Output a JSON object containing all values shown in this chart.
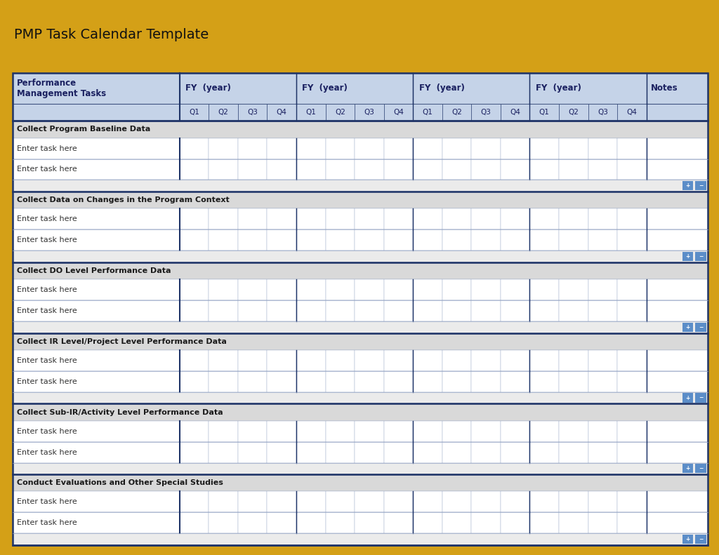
{
  "title": "PMP Task Calendar Template",
  "outer_border_color": "#D4A017",
  "bg_color": "#FFFFFF",
  "header_bg": "#C5D3E8",
  "header_text_color": "#1a2060",
  "section_bg": "#D9D9D9",
  "section_text_color": "#1a1a1a",
  "row_bg": "#FFFFFF",
  "row_text_color": "#333333",
  "grid_line_color": "#9BAAC8",
  "dark_border_color": "#1F3468",
  "col1_label": "Performance\nManagement Tasks",
  "fy_labels": [
    "FY  (year)",
    "FY  (year)",
    "FY  (year)",
    "FY  (year)"
  ],
  "quarter_labels": [
    "Q1",
    "Q2",
    "Q3",
    "Q4"
  ],
  "notes_label": "Notes",
  "sections": [
    {
      "title": "Collect Program Baseline Data",
      "rows": [
        "Enter task here",
        "Enter task here"
      ]
    },
    {
      "title": "Collect Data on Changes in the Program Context",
      "rows": [
        "Enter task here",
        "Enter task here"
      ]
    },
    {
      "title": "Collect DO Level Performance Data",
      "rows": [
        "Enter task here",
        "Enter task here"
      ]
    },
    {
      "title": "Collect IR Level/Project Level Performance Data",
      "rows": [
        "Enter task here",
        "Enter task here"
      ]
    },
    {
      "title": "Collect Sub-IR/Activity Level Performance Data",
      "rows": [
        "Enter task here",
        "Enter task here"
      ]
    },
    {
      "title": "Conduct Evaluations and Other Special Studies",
      "rows": [
        "Enter task here",
        "Enter task here"
      ]
    }
  ],
  "plus_minus_bg": "#5B8DC8",
  "plus_minus_text": "#FFFFFF",
  "title_fontsize": 14,
  "header_fontsize": 8.5,
  "section_fontsize": 8.0,
  "row_fontsize": 8.0,
  "quarter_fontsize": 7.5
}
